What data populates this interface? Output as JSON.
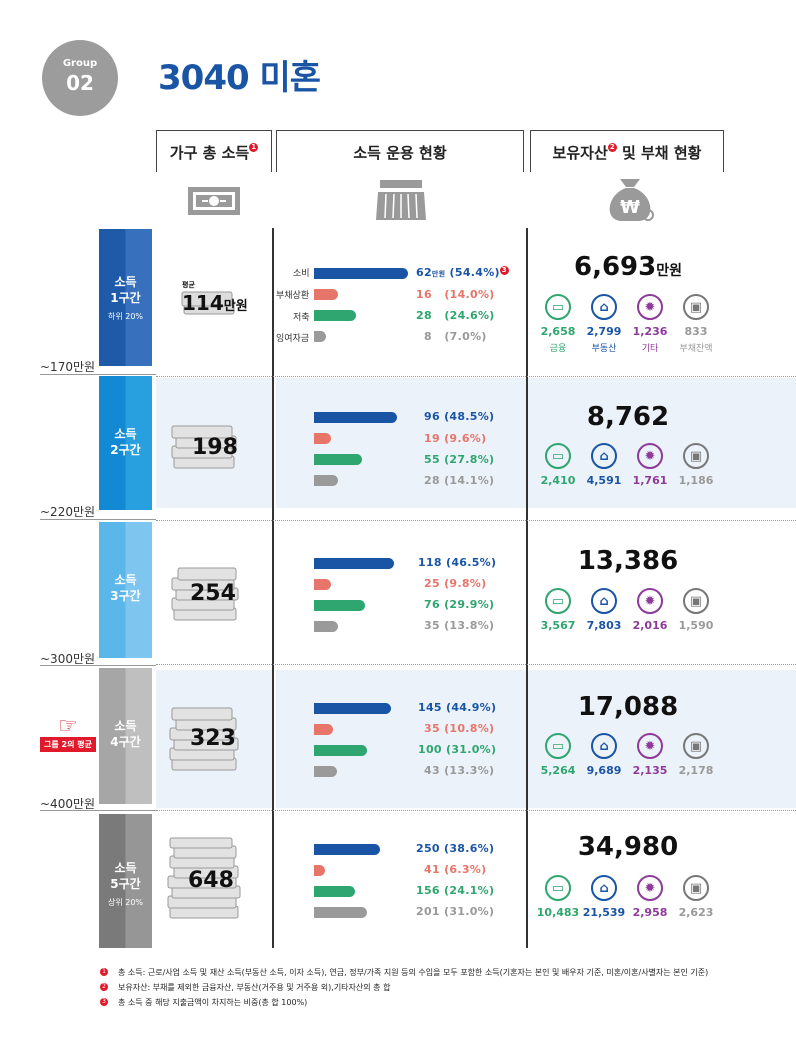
{
  "group": {
    "label": "Group",
    "number": "02"
  },
  "title": "3040 미혼",
  "columns": {
    "income": "가구 총 소득",
    "usage": "소득 운용 현황",
    "assets": "보유자산",
    "assets_suffix": "및 부채 현황",
    "note1": "1",
    "note2": "2",
    "note3": "3"
  },
  "avg_label": "평균",
  "income_unit": "만원",
  "usage_labels": {
    "spend": "소비",
    "debt": "부채상환",
    "save": "저축",
    "surplus": "잉여자금"
  },
  "asset_labels": {
    "fin": "금융",
    "estate": "부동산",
    "etc": "기타",
    "debt": "부채잔액"
  },
  "boundaries": [
    "~170만원",
    "~220만원",
    "~300만원",
    "~400만원"
  ],
  "group_avg_marker": "그룹 2의 평균",
  "colors": {
    "blue": "#1a55a5",
    "red": "#e8756a",
    "green": "#2fa56f",
    "gray": "#999999"
  },
  "tiers": [
    {
      "name1": "소득",
      "name2": "1구간",
      "sub": "하위 20%",
      "income": "114",
      "income_suffix": "만원",
      "spend": {
        "amt": "62",
        "unit": "만원",
        "pct": "(54.4%)",
        "v": 54.4
      },
      "debt": {
        "amt": "16",
        "pct": "(14.0%)",
        "v": 14.0
      },
      "save": {
        "amt": "28",
        "pct": "(24.6%)",
        "v": 24.6
      },
      "surplus": {
        "amt": "8",
        "pct": "(7.0%)",
        "v": 7.0
      },
      "total": "6,693",
      "total_unit": "만원",
      "fin": "2,658",
      "estate": "2,799",
      "etc": "1,236",
      "debtbal": "833"
    },
    {
      "name1": "소득",
      "name2": "2구간",
      "sub": "",
      "income": "198",
      "income_suffix": "",
      "spend": {
        "amt": "96",
        "unit": "",
        "pct": "(48.5%)",
        "v": 48.5
      },
      "debt": {
        "amt": "19",
        "pct": "(9.6%)",
        "v": 9.6
      },
      "save": {
        "amt": "55",
        "pct": "(27.8%)",
        "v": 27.8
      },
      "surplus": {
        "amt": "28",
        "pct": "(14.1%)",
        "v": 14.1
      },
      "total": "8,762",
      "total_unit": "",
      "fin": "2,410",
      "estate": "4,591",
      "etc": "1,761",
      "debtbal": "1,186"
    },
    {
      "name1": "소득",
      "name2": "3구간",
      "sub": "",
      "income": "254",
      "income_suffix": "",
      "spend": {
        "amt": "118",
        "unit": "",
        "pct": "(46.5%)",
        "v": 46.5
      },
      "debt": {
        "amt": "25",
        "pct": "(9.8%)",
        "v": 9.8
      },
      "save": {
        "amt": "76",
        "pct": "(29.9%)",
        "v": 29.9
      },
      "surplus": {
        "amt": "35",
        "pct": "(13.8%)",
        "v": 13.8
      },
      "total": "13,386",
      "total_unit": "",
      "fin": "3,567",
      "estate": "7,803",
      "etc": "2,016",
      "debtbal": "1,590"
    },
    {
      "name1": "소득",
      "name2": "4구간",
      "sub": "",
      "income": "323",
      "income_suffix": "",
      "spend": {
        "amt": "145",
        "unit": "",
        "pct": "(44.9%)",
        "v": 44.9
      },
      "debt": {
        "amt": "35",
        "pct": "(10.8%)",
        "v": 10.8
      },
      "save": {
        "amt": "100",
        "pct": "(31.0%)",
        "v": 31.0
      },
      "surplus": {
        "amt": "43",
        "pct": "(13.3%)",
        "v": 13.3
      },
      "total": "17,088",
      "total_unit": "",
      "fin": "5,264",
      "estate": "9,689",
      "etc": "2,135",
      "debtbal": "2,178"
    },
    {
      "name1": "소득",
      "name2": "5구간",
      "sub": "상위 20%",
      "income": "648",
      "income_suffix": "",
      "spend": {
        "amt": "250",
        "unit": "",
        "pct": "(38.6%)",
        "v": 38.6
      },
      "debt": {
        "amt": "41",
        "pct": "(6.3%)",
        "v": 6.3
      },
      "save": {
        "amt": "156",
        "pct": "(24.1%)",
        "v": 24.1
      },
      "surplus": {
        "amt": "201",
        "pct": "(31.0%)",
        "v": 31.0
      },
      "total": "34,980",
      "total_unit": "",
      "fin": "10,483",
      "estate": "21,539",
      "etc": "2,958",
      "debtbal": "2,623"
    }
  ],
  "footnotes": [
    {
      "n": "1",
      "text": "총 소득: 근로/사업 소득 및 재산 소득(부동산 소득, 이자 소득), 연금, 정부/가족 지원 등의 수입을 모두 포함한 소득(기혼자는 본인 및 배우자 기준, 미혼/이혼/사별자는 본인 기준)"
    },
    {
      "n": "2",
      "text": "보유자산: 부채를 제외한 금융자산, 부동산(거주용 및 거주용 외),기타자산의 총 합"
    },
    {
      "n": "3",
      "text": "총 소득 중 해당 지출금액이 차지하는 비중(총 합 100%)"
    }
  ]
}
